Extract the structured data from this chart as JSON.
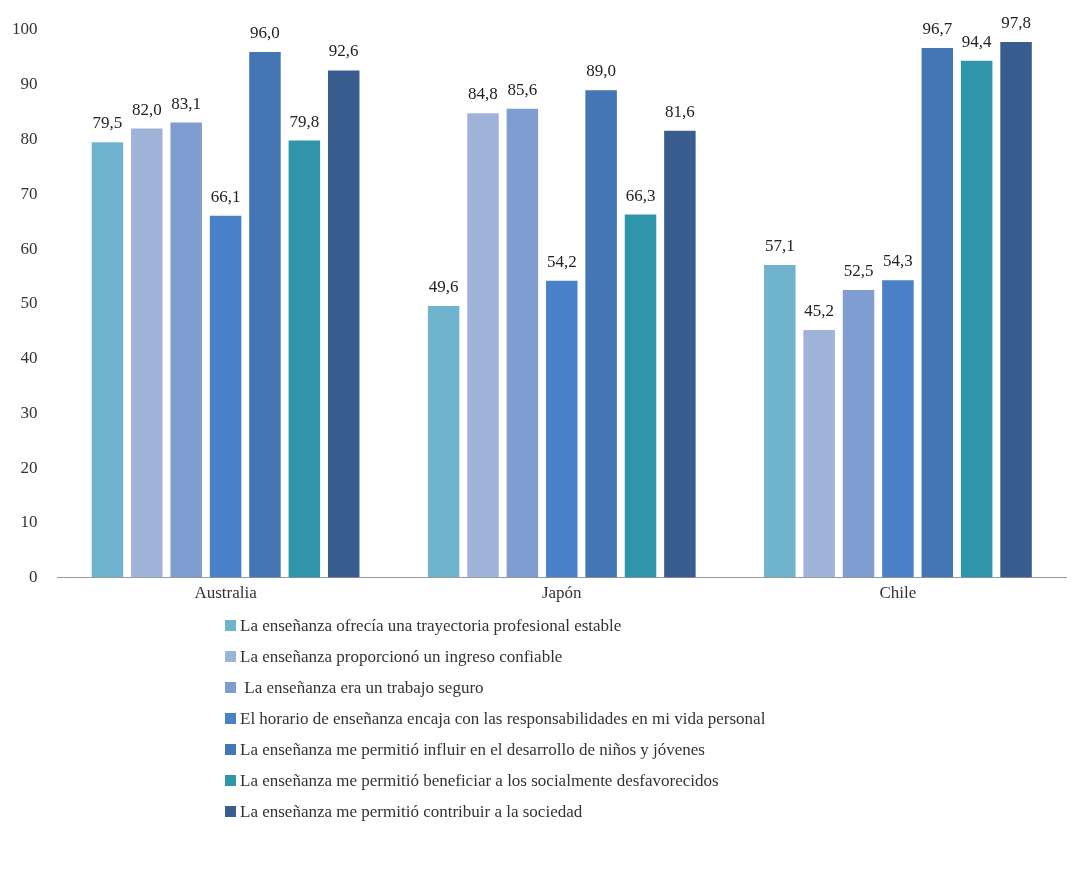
{
  "chart_data": {
    "type": "bar",
    "categories": [
      "Australia",
      "Japón",
      "Chile"
    ],
    "ylim": [
      0,
      100
    ],
    "yticks": [
      0,
      10,
      20,
      30,
      40,
      50,
      60,
      70,
      80,
      90,
      100
    ],
    "grid": false,
    "legend": "bottom",
    "series": [
      {
        "name": "La enseñanza ofrecía una trayectoria profesional estable",
        "color": "#6fb4cc",
        "values": [
          79.5,
          49.6,
          57.1
        ],
        "value_labels": [
          "79,5",
          "49,6",
          "57,1"
        ]
      },
      {
        "name": "La enseñanza proporcionó un ingreso confiable",
        "color": "#9fb3d9",
        "values": [
          82.0,
          84.8,
          45.2
        ],
        "value_labels": [
          "82,0",
          "84,8",
          "45,2"
        ]
      },
      {
        "name": " La enseñanza era un trabajo seguro",
        "color": "#7f9dd0",
        "values": [
          83.1,
          85.6,
          52.5
        ],
        "value_labels": [
          "83,1",
          "85,6",
          "52,5"
        ]
      },
      {
        "name": "El horario de enseñanza encaja con las responsabilidades en mi vida personal",
        "color": "#4a80c8",
        "values": [
          66.1,
          54.2,
          54.3
        ],
        "value_labels": [
          "66,1",
          "54,2",
          "54,3"
        ]
      },
      {
        "name": "La enseñanza me permitió influir en el desarrollo de niños y jóvenes",
        "color": "#4475b4",
        "values": [
          96.0,
          89.0,
          96.7
        ],
        "value_labels": [
          "96,0",
          "89,0",
          "96,7"
        ]
      },
      {
        "name": "La enseñanza me permitió beneficiar a los socialmente desfavorecidos",
        "color": "#2f95ab",
        "values": [
          79.8,
          66.3,
          94.4
        ],
        "value_labels": [
          "79,8",
          "66,3",
          "94,4"
        ]
      },
      {
        "name": "La enseñanza me permitió contribuir a la sociedad",
        "color": "#3a5d8f",
        "values": [
          92.6,
          81.6,
          97.8
        ],
        "value_labels": [
          "92,6",
          "81,6",
          "97,8"
        ]
      }
    ]
  }
}
